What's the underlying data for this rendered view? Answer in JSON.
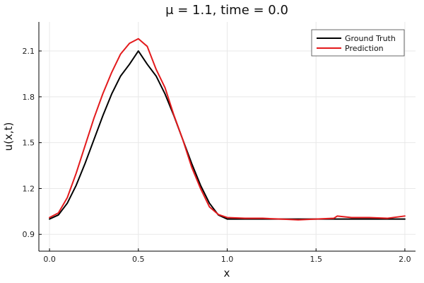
{
  "chart_data": {
    "type": "line",
    "title": "μ = 1.1, time = 0.0",
    "xlabel": "x",
    "ylabel": "u(x,t)",
    "xlim": [
      -0.06,
      2.06
    ],
    "ylim": [
      0.79,
      2.29
    ],
    "x_ticks": [
      0.0,
      0.5,
      1.0,
      1.5,
      2.0
    ],
    "x_tick_labels": [
      "0.0",
      "0.5",
      "1.0",
      "1.5",
      "2.0"
    ],
    "y_ticks": [
      0.9,
      1.2,
      1.5,
      1.8,
      2.1
    ],
    "y_tick_labels": [
      "0.9",
      "1.2",
      "1.5",
      "1.8",
      "2.1"
    ],
    "grid": true,
    "legend_position": "top-right",
    "series": [
      {
        "name": "Ground Truth",
        "color": "#000000",
        "x": [
          0.0,
          0.05,
          0.1,
          0.15,
          0.2,
          0.25,
          0.3,
          0.35,
          0.4,
          0.45,
          0.5,
          0.55,
          0.6,
          0.65,
          0.7,
          0.75,
          0.8,
          0.85,
          0.9,
          0.95,
          1.0,
          1.25,
          1.5,
          1.75,
          2.0
        ],
        "values": [
          1.0,
          1.027,
          1.104,
          1.221,
          1.364,
          1.52,
          1.676,
          1.819,
          1.936,
          2.013,
          2.1,
          2.013,
          1.936,
          1.819,
          1.676,
          1.52,
          1.364,
          1.221,
          1.104,
          1.027,
          1.0,
          1.0,
          1.0,
          1.0,
          1.0
        ]
      },
      {
        "name": "Prediction",
        "color": "#e31a1c",
        "x": [
          0.0,
          0.05,
          0.1,
          0.15,
          0.2,
          0.25,
          0.3,
          0.35,
          0.4,
          0.45,
          0.5,
          0.55,
          0.6,
          0.65,
          0.7,
          0.75,
          0.8,
          0.85,
          0.9,
          0.95,
          1.0,
          1.1,
          1.2,
          1.3,
          1.4,
          1.5,
          1.6,
          1.62,
          1.7,
          1.8,
          1.9,
          2.0
        ],
        "values": [
          1.01,
          1.04,
          1.14,
          1.3,
          1.48,
          1.66,
          1.82,
          1.96,
          2.08,
          2.15,
          2.18,
          2.13,
          1.98,
          1.86,
          1.68,
          1.52,
          1.34,
          1.2,
          1.08,
          1.03,
          1.01,
          1.005,
          1.005,
          1.0,
          0.995,
          1.0,
          1.005,
          1.02,
          1.01,
          1.01,
          1.005,
          1.02
        ]
      }
    ]
  }
}
